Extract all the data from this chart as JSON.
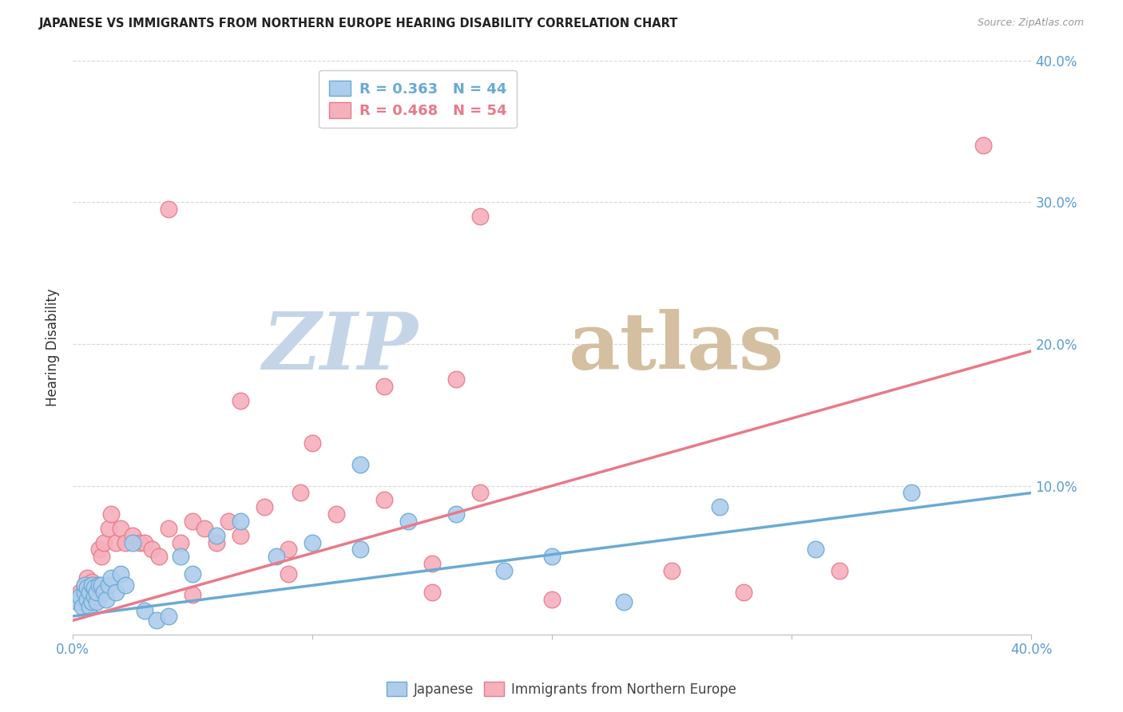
{
  "title": "JAPANESE VS IMMIGRANTS FROM NORTHERN EUROPE HEARING DISABILITY CORRELATION CHART",
  "source": "Source: ZipAtlas.com",
  "ylabel": "Hearing Disability",
  "xlim": [
    0.0,
    0.4
  ],
  "ylim": [
    -0.005,
    0.4
  ],
  "yticks": [
    0.0,
    0.1,
    0.2,
    0.3,
    0.4
  ],
  "ytick_labels": [
    "",
    "10.0%",
    "20.0%",
    "30.0%",
    "40.0%"
  ],
  "legend_entries": [
    {
      "label": "R = 0.363   N = 44",
      "color": "#6aaad4"
    },
    {
      "label": "R = 0.468   N = 54",
      "color": "#e87a8a"
    }
  ],
  "blue_scatter_x": [
    0.002,
    0.003,
    0.004,
    0.005,
    0.005,
    0.006,
    0.006,
    0.007,
    0.007,
    0.008,
    0.008,
    0.009,
    0.009,
    0.01,
    0.01,
    0.011,
    0.012,
    0.013,
    0.014,
    0.015,
    0.016,
    0.018,
    0.02,
    0.022,
    0.025,
    0.03,
    0.035,
    0.04,
    0.045,
    0.05,
    0.06,
    0.07,
    0.085,
    0.1,
    0.12,
    0.14,
    0.16,
    0.2,
    0.23,
    0.27,
    0.12,
    0.18,
    0.31,
    0.35
  ],
  "blue_scatter_y": [
    0.018,
    0.022,
    0.015,
    0.025,
    0.03,
    0.02,
    0.028,
    0.015,
    0.025,
    0.018,
    0.03,
    0.022,
    0.028,
    0.018,
    0.025,
    0.03,
    0.03,
    0.025,
    0.02,
    0.03,
    0.035,
    0.025,
    0.038,
    0.03,
    0.06,
    0.012,
    0.005,
    0.008,
    0.05,
    0.038,
    0.065,
    0.075,
    0.05,
    0.06,
    0.055,
    0.075,
    0.08,
    0.05,
    0.018,
    0.085,
    0.115,
    0.04,
    0.055,
    0.095
  ],
  "pink_scatter_x": [
    0.002,
    0.003,
    0.004,
    0.005,
    0.005,
    0.006,
    0.006,
    0.007,
    0.007,
    0.008,
    0.008,
    0.009,
    0.01,
    0.011,
    0.012,
    0.013,
    0.015,
    0.016,
    0.018,
    0.02,
    0.022,
    0.025,
    0.028,
    0.03,
    0.033,
    0.036,
    0.04,
    0.045,
    0.05,
    0.055,
    0.06,
    0.065,
    0.07,
    0.08,
    0.09,
    0.1,
    0.11,
    0.13,
    0.15,
    0.17,
    0.07,
    0.095,
    0.13,
    0.16,
    0.25,
    0.05,
    0.09,
    0.2,
    0.28,
    0.32,
    0.04,
    0.17,
    0.15,
    0.38
  ],
  "pink_scatter_y": [
    0.02,
    0.025,
    0.018,
    0.03,
    0.025,
    0.022,
    0.035,
    0.018,
    0.028,
    0.02,
    0.032,
    0.025,
    0.03,
    0.055,
    0.05,
    0.06,
    0.07,
    0.08,
    0.06,
    0.07,
    0.06,
    0.065,
    0.06,
    0.06,
    0.055,
    0.05,
    0.07,
    0.06,
    0.075,
    0.07,
    0.06,
    0.075,
    0.065,
    0.085,
    0.055,
    0.13,
    0.08,
    0.09,
    0.045,
    0.095,
    0.16,
    0.095,
    0.17,
    0.175,
    0.04,
    0.023,
    0.038,
    0.02,
    0.025,
    0.04,
    0.295,
    0.29,
    0.025,
    0.34
  ],
  "blue_line_x": [
    0.0,
    0.4
  ],
  "blue_line_y": [
    0.008,
    0.095
  ],
  "pink_line_x": [
    0.0,
    0.4
  ],
  "pink_line_y": [
    0.005,
    0.195
  ],
  "blue_color": "#6aaad4",
  "blue_fill": "#aeccec",
  "pink_color": "#e87a8a",
  "pink_fill": "#f5b0bc",
  "background_color": "#ffffff",
  "grid_color": "#d8d8d8",
  "title_color": "#222222",
  "axis_label_color": "#5b9bd5",
  "ylabel_color": "#333333"
}
